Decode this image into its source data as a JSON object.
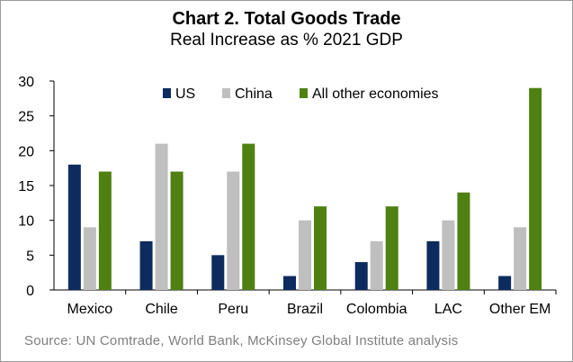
{
  "title": "Chart 2. Total Goods Trade",
  "subtitle": "Real Increase as % 2021 GDP",
  "source": "Source: UN Comtrade, World Bank, McKinsey Global Institute analysis",
  "chart_data": {
    "type": "bar",
    "title": "Chart 2. Total Goods Trade",
    "subtitle": "Real Increase as % 2021 GDP",
    "xlabel": "",
    "ylabel": "",
    "ylim": [
      0,
      30
    ],
    "yticks": [
      0,
      5,
      10,
      15,
      20,
      25,
      30
    ],
    "grid": false,
    "legend": "top",
    "categories": [
      "Mexico",
      "Chile",
      "Peru",
      "Brazil",
      "Colombia",
      "LAC",
      "Other EM"
    ],
    "series": [
      {
        "name": "US",
        "color": "#0d2b5e",
        "values": [
          18,
          7,
          5,
          2,
          4,
          7,
          2
        ]
      },
      {
        "name": "China",
        "color": "#bfbfbf",
        "values": [
          9,
          21,
          17,
          10,
          7,
          10,
          9
        ]
      },
      {
        "name": "All other economies",
        "color": "#4f8011",
        "values": [
          17,
          17,
          21,
          12,
          12,
          14,
          29
        ]
      }
    ]
  }
}
